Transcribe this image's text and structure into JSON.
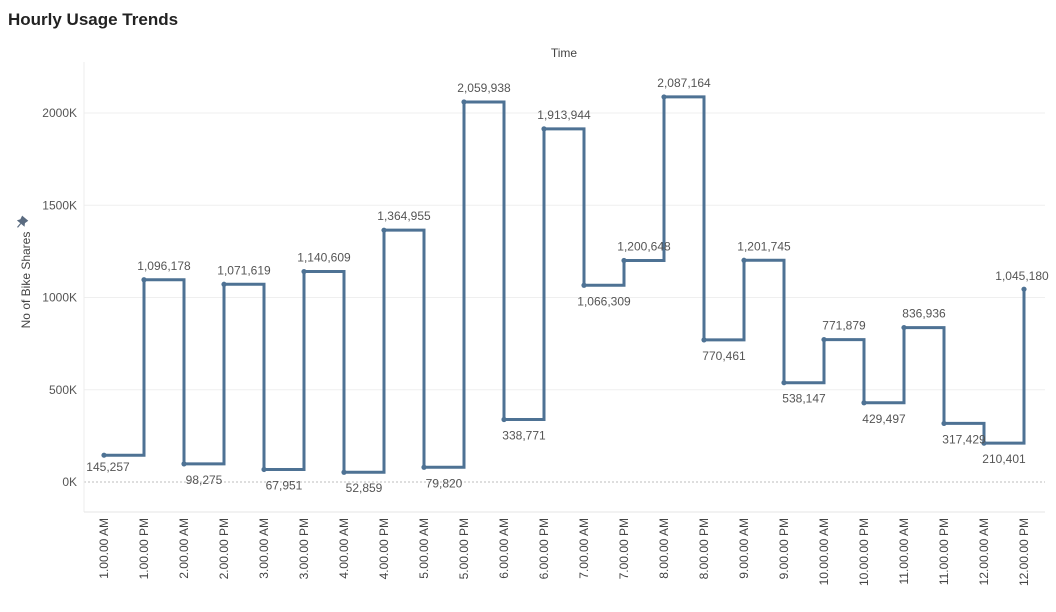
{
  "title": "Hourly Usage Trends",
  "chart_data": {
    "type": "line",
    "step": true,
    "column_header": "Time",
    "ylabel": "No of Bike Shares",
    "ylim": [
      -160000,
      2300000
    ],
    "yticks": [
      0,
      500000,
      1000000,
      1500000,
      2000000
    ],
    "ytick_labels": [
      "0K",
      "500K",
      "1000K",
      "1500K",
      "2000K"
    ],
    "grid": true,
    "line_color": "#4e7294",
    "categories": [
      "1.00.00 AM",
      "1.00.00 PM",
      "2.00.00 AM",
      "2.00.00 PM",
      "3.00.00 AM",
      "3.00.00 PM",
      "4.00.00 AM",
      "4.00.00 PM",
      "5.00.00 AM",
      "5.00.00 PM",
      "6.00.00 AM",
      "6.00.00 PM",
      "7.00.00 AM",
      "7.00.00 PM",
      "8.00.00 AM",
      "8.00.00 PM",
      "9.00.00 AM",
      "9.00.00 PM",
      "10.00.00 AM",
      "10.00.00 PM",
      "11.00.00 AM",
      "11.00.00 PM",
      "12.00.00 AM",
      "12.00.00 PM"
    ],
    "values": [
      145257,
      1096178,
      98275,
      1071619,
      67951,
      1140609,
      52859,
      1364955,
      79820,
      2059938,
      338771,
      1913944,
      1066309,
      1200648,
      2087164,
      770461,
      1201745,
      538147,
      771879,
      429497,
      836936,
      317429,
      210401,
      1045180
    ],
    "value_labels": [
      "145,257",
      "1,096,178",
      "98,275",
      "1,071,619",
      "67,951",
      "1,140,609",
      "52,859",
      "1,364,955",
      "79,820",
      "2,059,938",
      "338,771",
      "1,913,944",
      "1,066,309",
      "1,200,648",
      "2,087,164",
      "770,461",
      "1,201,745",
      "538,147",
      "771,879",
      "429,497",
      "836,936",
      "317,429",
      "210,401",
      "1,045,180"
    ]
  }
}
